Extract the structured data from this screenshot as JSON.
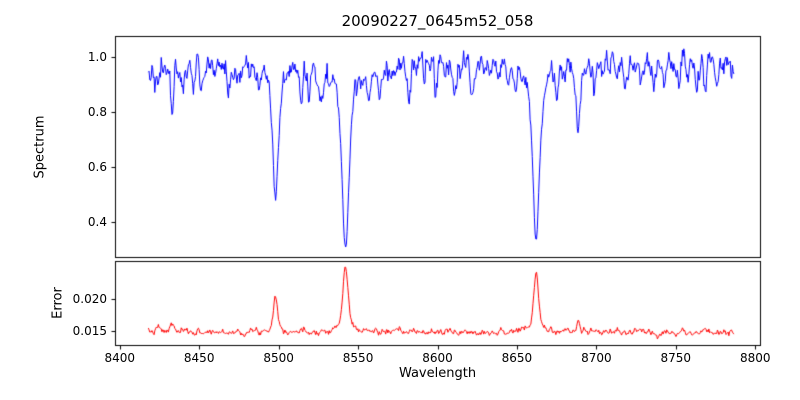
{
  "figure": {
    "title": "20090227_0645m52_058",
    "xlabel": "Wavelength"
  },
  "chart_data": [
    {
      "type": "line",
      "panel": "spectrum",
      "title": "20090227_0645m52_058",
      "ylabel": "Spectrum",
      "color": "#0000ff",
      "xlim": [
        8397,
        8803
      ],
      "ylim": [
        0.275,
        1.075
      ],
      "yticks": {
        "values": [
          0.4,
          0.6,
          0.8,
          1.0
        ],
        "labels": [
          "0.4",
          "0.6",
          "0.8",
          "1.0"
        ]
      },
      "x_start": 8418,
      "x_end": 8787,
      "x_step": 0.45,
      "continuum": 0.965,
      "noise_std": 0.021,
      "noise_seed": 42,
      "absorption_lines": [
        {
          "center": 8498.0,
          "depth": 0.51,
          "width": 1.5,
          "shape": "voigt"
        },
        {
          "center": 8542.1,
          "depth": 0.675,
          "width": 2.0,
          "shape": "voigt"
        },
        {
          "center": 8662.1,
          "depth": 0.64,
          "width": 1.9,
          "shape": "voigt"
        },
        {
          "center": 8424.2,
          "depth": 0.1,
          "width": 0.9,
          "shape": "gauss"
        },
        {
          "center": 8433.0,
          "depth": 0.18,
          "width": 1.0,
          "shape": "gauss"
        },
        {
          "center": 8439.5,
          "depth": 0.08,
          "width": 0.8,
          "shape": "gauss"
        },
        {
          "center": 8446.5,
          "depth": 0.09,
          "width": 0.9,
          "shape": "gauss"
        },
        {
          "center": 8451.0,
          "depth": 0.07,
          "width": 0.8,
          "shape": "gauss"
        },
        {
          "center": 8468.4,
          "depth": 0.11,
          "width": 0.9,
          "shape": "gauss"
        },
        {
          "center": 8475.0,
          "depth": 0.08,
          "width": 0.8,
          "shape": "gauss"
        },
        {
          "center": 8488.0,
          "depth": 0.07,
          "width": 0.8,
          "shape": "gauss"
        },
        {
          "center": 8514.1,
          "depth": 0.12,
          "width": 0.9,
          "shape": "gauss"
        },
        {
          "center": 8519.0,
          "depth": 0.09,
          "width": 0.8,
          "shape": "gauss"
        },
        {
          "center": 8526.7,
          "depth": 0.08,
          "width": 0.8,
          "shape": "gauss"
        },
        {
          "center": 8556.8,
          "depth": 0.09,
          "width": 0.9,
          "shape": "gauss"
        },
        {
          "center": 8564.0,
          "depth": 0.07,
          "width": 0.8,
          "shape": "gauss"
        },
        {
          "center": 8582.3,
          "depth": 0.1,
          "width": 0.9,
          "shape": "gauss"
        },
        {
          "center": 8598.8,
          "depth": 0.11,
          "width": 0.9,
          "shape": "gauss"
        },
        {
          "center": 8611.0,
          "depth": 0.08,
          "width": 0.8,
          "shape": "gauss"
        },
        {
          "center": 8621.6,
          "depth": 0.1,
          "width": 0.9,
          "shape": "gauss"
        },
        {
          "center": 8648.5,
          "depth": 0.08,
          "width": 0.8,
          "shape": "gauss"
        },
        {
          "center": 8674.7,
          "depth": 0.09,
          "width": 0.8,
          "shape": "gauss"
        },
        {
          "center": 8688.6,
          "depth": 0.23,
          "width": 1.1,
          "shape": "gauss"
        },
        {
          "center": 8699.0,
          "depth": 0.07,
          "width": 0.8,
          "shape": "gauss"
        },
        {
          "center": 8713.2,
          "depth": 0.09,
          "width": 0.9,
          "shape": "gauss"
        },
        {
          "center": 8718.0,
          "depth": 0.07,
          "width": 0.8,
          "shape": "gauss"
        },
        {
          "center": 8728.0,
          "depth": 0.08,
          "width": 0.8,
          "shape": "gauss"
        },
        {
          "center": 8736.0,
          "depth": 0.07,
          "width": 0.8,
          "shape": "gauss"
        },
        {
          "center": 8742.5,
          "depth": 0.09,
          "width": 0.8,
          "shape": "gauss"
        },
        {
          "center": 8752.0,
          "depth": 0.07,
          "width": 0.8,
          "shape": "gauss"
        },
        {
          "center": 8757.5,
          "depth": 0.08,
          "width": 0.8,
          "shape": "gauss"
        },
        {
          "center": 8763.0,
          "depth": 0.07,
          "width": 0.8,
          "shape": "gauss"
        },
        {
          "center": 8768.5,
          "depth": 0.09,
          "width": 0.8,
          "shape": "gauss"
        },
        {
          "center": 8776.0,
          "depth": 0.07,
          "width": 0.8,
          "shape": "gauss"
        }
      ]
    },
    {
      "type": "line",
      "panel": "error",
      "ylabel": "Error",
      "xlabel": "Wavelength",
      "color": "#ff0000",
      "xlim": [
        8397,
        8803
      ],
      "ylim": [
        0.0128,
        0.0259
      ],
      "yticks": {
        "values": [
          0.015,
          0.02
        ],
        "labels": [
          "0.015",
          "0.020"
        ]
      },
      "xticks": {
        "values": [
          8400,
          8450,
          8500,
          8550,
          8600,
          8650,
          8700,
          8750,
          8800
        ],
        "labels": [
          "8400",
          "8450",
          "8500",
          "8550",
          "8600",
          "8650",
          "8700",
          "8750",
          "8800"
        ]
      },
      "x_start": 8418,
      "x_end": 8787,
      "x_step": 0.45,
      "baseline": 0.0148,
      "noise_std": 0.00022,
      "noise_seed": 7,
      "peaks": [
        {
          "center": 8424.2,
          "amp": 0.0007,
          "width": 0.9
        },
        {
          "center": 8433.0,
          "amp": 0.0013,
          "width": 1.0
        },
        {
          "center": 8498.0,
          "amp": 0.0055,
          "width": 1.3
        },
        {
          "center": 8542.1,
          "amp": 0.0103,
          "width": 1.5
        },
        {
          "center": 8662.1,
          "amp": 0.0092,
          "width": 1.4
        },
        {
          "center": 8688.6,
          "amp": 0.0016,
          "width": 1.0
        }
      ]
    }
  ]
}
